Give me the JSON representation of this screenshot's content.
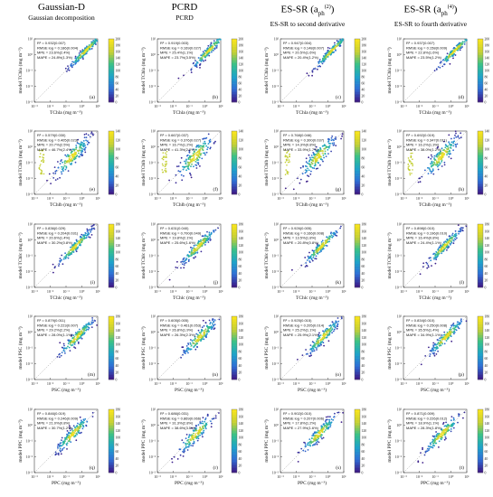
{
  "columns": [
    {
      "title": "Gaussian-D",
      "subtitle": "Gaussian decomposition"
    },
    {
      "title": "PCRD",
      "subtitle": "PCRD"
    },
    {
      "title": "ES-SR (a",
      "title_sub": "ph",
      "title_sup": "(2)",
      "title_end": ")",
      "subtitle": "ES-SR to second derivative"
    },
    {
      "title": "ES-SR (a",
      "title_sub": "ph",
      "title_sup": "(4)",
      "title_end": ")",
      "subtitle": "ES-SR to fourth derivative"
    }
  ],
  "pigments": [
    "TChla",
    "TChlb",
    "TChlc",
    "PSC",
    "PPC"
  ],
  "axis_unit": "(mg m⁻³)",
  "tick_labels": [
    "10⁻³",
    "10⁻²",
    "10⁻¹",
    "10⁰",
    "10¹"
  ],
  "colorbar_ticks": [
    [
      "0",
      "20",
      "40",
      "60",
      "80",
      "100",
      "120",
      "140",
      "160",
      "180",
      "200"
    ],
    [
      "0",
      "20",
      "40",
      "60",
      "80",
      "100",
      "120",
      "140"
    ],
    [
      "0",
      "20",
      "40",
      "60",
      "80",
      "100",
      "120",
      "140",
      "160",
      "180"
    ],
    [
      "0",
      "20",
      "40",
      "60",
      "80",
      "100",
      "120",
      "140",
      "160",
      "180"
    ],
    [
      "0",
      "20",
      "40",
      "60",
      "80",
      "100",
      "120",
      "140",
      "160",
      "180"
    ]
  ],
  "panel_letters": [
    "(a)",
    "(b)",
    "(c)",
    "(d)",
    "(e)",
    "(f)",
    "(g)",
    "(h)",
    "(i)",
    "(j)",
    "(k)",
    "(l)",
    "(m)",
    "(n)",
    "(o)",
    "(p)",
    "(q)",
    "(r)",
    "(s)",
    "(t)"
  ],
  "chart_data": {
    "type": "scatter",
    "x_scale": "log",
    "y_scale": "log",
    "xlim": [
      0.001,
      10
    ],
    "ylim": [
      0.001,
      10
    ],
    "colorscale": [
      "#3b1a87",
      "#2f6fd6",
      "#1ea3c9",
      "#36c08a",
      "#c4cf35",
      "#f6e41e"
    ],
    "panels": [
      {
        "id": "a",
        "row": 0,
        "col": 0,
        "stats": [
          "R² = 0.932(0.007)",
          "RMSE log = 0.186(0.004)",
          "MPE = 23.6%(2.4%)",
          "MAPE = 24.8%(1.3%)"
        ]
      },
      {
        "id": "b",
        "row": 0,
        "col": 1,
        "stats": [
          "R² = 0.919(0.003)",
          "RMSE log = 0.169(0.027)",
          "MPE = 25.4%(1.1%)",
          "MAPE = 23.7%(3.5%)"
        ]
      },
      {
        "id": "c",
        "row": 0,
        "col": 2,
        "stats": [
          "R² = 0.947(0.004)",
          "RMSE log = 0.148(0.007)",
          "MPE = 20.5%(1.6%)",
          "MAPE = 20.4%(1.2%)"
        ]
      },
      {
        "id": "d",
        "row": 0,
        "col": 3,
        "stats": [
          "R² = 0.937(0.007)",
          "RMSE log = 0.158(0.009)",
          "MPE = 22.8%(1.6%)",
          "MAPE = 23.5%(1.2%)"
        ]
      },
      {
        "id": "e",
        "row": 1,
        "col": 0,
        "stats": [
          "R² = 0.579(0.030)",
          "RMSE log = 0.405(0.023)",
          "MPE = 20.7%(2.5%)",
          "MAPE = 46.7%(2.4%)"
        ]
      },
      {
        "id": "f",
        "row": 1,
        "col": 1,
        "stats": [
          "R² = 0.667(0.037)",
          "RMSE log = 0.376(0.027)",
          "MPE = 16.7%(1.2%)",
          "MAPE = 41.3%(2.0%)"
        ]
      },
      {
        "id": "g",
        "row": 1,
        "col": 2,
        "stats": [
          "R² = 0.768(0.046)",
          "RMSE log = 0.300(0.037)",
          "MPE = 14.3%(0.8%)",
          "MAPE = 33.9%(1.7%)"
        ]
      },
      {
        "id": "h",
        "row": 1,
        "col": 3,
        "stats": [
          "R² = 0.692(0.019)",
          "RMSE log = 0.347(0.011)",
          "MPE = 16.2%(1.3%)",
          "MAPE = 38.0%(1.2%)"
        ]
      },
      {
        "id": "i",
        "row": 2,
        "col": 0,
        "stats": [
          "R² = 0.836(0.029)",
          "RMSE log = 0.204(0.031)",
          "MPE = 20.6%(1.4%)",
          "MAPE = 30.2%(0.8%)"
        ]
      },
      {
        "id": "j",
        "row": 2,
        "col": 1,
        "stats": [
          "R² = 0.631(0.040)",
          "RMSE log = 0.700(0.049)",
          "MPE = 19.8%(2.1%)",
          "MAPE = 25.6%(1.6%)"
        ]
      },
      {
        "id": "k",
        "row": 2,
        "col": 2,
        "stats": [
          "R² = 0.926(0.005)",
          "RMSE log = 0.166(0.008)",
          "MPE = 13.5%(1.8%)",
          "MAPE = 20.8%(0.8%)"
        ]
      },
      {
        "id": "l",
        "row": 2,
        "col": 3,
        "stats": [
          "R² = 0.898(0.010)",
          "RMSE log = 0.196(0.010)",
          "MPE = 16.4%(0.8%)",
          "MAPE = 24.4%(1.1%)"
        ]
      },
      {
        "id": "m",
        "row": 3,
        "col": 0,
        "stats": [
          "R² = 0.879(0.011)",
          "RMSE log = 0.223(0.007)",
          "MPE = 29.2%(2.2%)",
          "MAPE = 28.0%(1.1%)"
        ]
      },
      {
        "id": "n",
        "row": 3,
        "col": 1,
        "stats": [
          "R² = 0.605(0.005)",
          "RMSE log = 0.461(0.053)",
          "MPE = 26.8%(1.9%)",
          "MAPE = 26.3%(2.3%)"
        ]
      },
      {
        "id": "o",
        "row": 3,
        "col": 2,
        "stats": [
          "R² = 0.925(0.015)",
          "RMSE log = 0.205(0.014)",
          "MPE = 25.2%(1.1%)",
          "MAPE = 25.9%(2.1%)"
        ]
      },
      {
        "id": "p",
        "row": 3,
        "col": 3,
        "stats": [
          "R² = 0.834(0.010)",
          "RMSE log = 0.250(0.008)",
          "MPE = 35.5%(1.4%)",
          "MAPE = 34.9%(1.1%)"
        ]
      },
      {
        "id": "q",
        "row": 4,
        "col": 0,
        "stats": [
          "R² = 0.846(0.019)",
          "RMSE log = 0.246(0.009)",
          "MPE = 21.0%(0.8%)",
          "MAPE = 30.7%(1.2%)"
        ]
      },
      {
        "id": "r",
        "row": 4,
        "col": 1,
        "stats": [
          "R² = 0.686(0.031)",
          "RMSE log = 0.869(0.066)",
          "MPE = 31.3%(2.8%)",
          "MAPE = 38.6%(3.5%)"
        ]
      },
      {
        "id": "s",
        "row": 4,
        "col": 2,
        "stats": [
          "R² = 0.902(0.010)",
          "RMSE log = 0.207(0.006)",
          "MPE = 17.8%(1.2%)",
          "MAPE = 27.9%(1.6%)"
        ]
      },
      {
        "id": "t",
        "row": 4,
        "col": 3,
        "stats": [
          "R² = 0.871(0.009)",
          "RMSE log = 0.226(0.012)",
          "MPE = 18.9%(1.1%)",
          "MAPE = 28.3%(1.8%)"
        ]
      }
    ]
  }
}
